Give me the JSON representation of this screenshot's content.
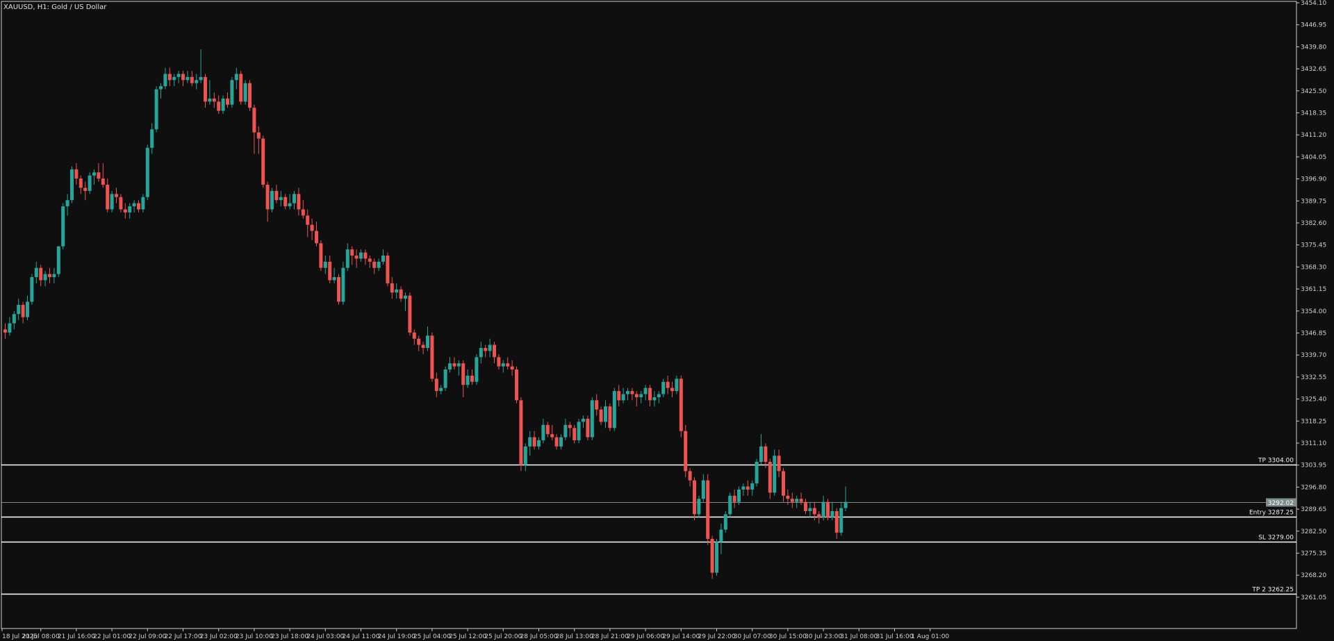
{
  "window": {
    "symbol_title": "XAUUSD, H1:  Gold / US Dollar"
  },
  "colors": {
    "background": "#0f0f0f",
    "bull": "#26a69a",
    "bear": "#ef5350",
    "axis_text": "#d0d0d0",
    "level_line": "#ffffff",
    "bid_line": "#7f8c8d",
    "price_tag_bg": "#7f8c8d"
  },
  "chart_data": {
    "type": "candlestick",
    "title": "XAUUSD, H1:  Gold / US Dollar",
    "ylim": [
      3257.0,
      3454.1
    ],
    "y_ticks": [
      "3454.10",
      "3446.95",
      "3439.80",
      "3432.65",
      "3425.50",
      "3418.35",
      "3411.20",
      "3404.05",
      "3396.90",
      "3389.75",
      "3382.60",
      "3375.45",
      "3368.30",
      "3361.15",
      "3354.00",
      "3346.85",
      "3339.70",
      "3332.55",
      "3325.40",
      "3318.25",
      "3311.10",
      "3303.95",
      "3296.80",
      "3289.65",
      "3282.50",
      "3275.35",
      "3268.20",
      "3261.05"
    ],
    "x_ticks": [
      {
        "label": "18 Jul 2025",
        "index": 0
      },
      {
        "label": "21 Jul 08:00",
        "index": 8
      },
      {
        "label": "21 Jul 16:00",
        "index": 16
      },
      {
        "label": "22 Jul 01:00",
        "index": 24
      },
      {
        "label": "22 Jul 09:00",
        "index": 32
      },
      {
        "label": "22 Jul 17:00",
        "index": 40
      },
      {
        "label": "23 Jul 02:00",
        "index": 48
      },
      {
        "label": "23 Jul 10:00",
        "index": 56
      },
      {
        "label": "23 Jul 18:00",
        "index": 64
      },
      {
        "label": "24 Jul 03:00",
        "index": 72
      },
      {
        "label": "24 Jul 11:00",
        "index": 80
      },
      {
        "label": "24 Jul 19:00",
        "index": 88
      },
      {
        "label": "25 Jul 04:00",
        "index": 96
      },
      {
        "label": "25 Jul 12:00",
        "index": 104
      },
      {
        "label": "25 Jul 20:00",
        "index": 112
      },
      {
        "label": "28 Jul 05:00",
        "index": 120
      },
      {
        "label": "28 Jul 13:00",
        "index": 128
      },
      {
        "label": "28 Jul 21:00",
        "index": 136
      },
      {
        "label": "29 Jul 06:00",
        "index": 144
      },
      {
        "label": "29 Jul 14:00",
        "index": 152
      },
      {
        "label": "29 Jul 22:00",
        "index": 160
      },
      {
        "label": "30 Jul 07:00",
        "index": 168
      },
      {
        "label": "30 Jul 15:00",
        "index": 176
      },
      {
        "label": "30 Jul 23:00",
        "index": 184
      },
      {
        "label": "31 Jul 08:00",
        "index": 192
      },
      {
        "label": "31 Jul 16:00",
        "index": 200
      },
      {
        "label": "1 Aug 01:00",
        "index": 208
      }
    ],
    "levels": [
      {
        "label": "TP 3304.00",
        "price": 3304.0
      },
      {
        "label": "Entry 3287.25",
        "price": 3287.25
      },
      {
        "label": "SL 3279.00",
        "price": 3279.0
      },
      {
        "label": "TP 2 3262.25",
        "price": 3262.25
      }
    ],
    "current_price": {
      "label": "3292.02",
      "price": 3292.02
    },
    "candles": [
      [
        3348.0,
        3350.0,
        3345.0,
        3347.0
      ],
      [
        3347.0,
        3352.0,
        3346.0,
        3350.0
      ],
      [
        3350.0,
        3354.0,
        3348.0,
        3353.0
      ],
      [
        3353.0,
        3358.0,
        3351.0,
        3356.0
      ],
      [
        3356.0,
        3357.0,
        3350.0,
        3352.0
      ],
      [
        3352.0,
        3359.0,
        3351.0,
        3357.0
      ],
      [
        3357.0,
        3366.0,
        3356.0,
        3365.0
      ],
      [
        3365.0,
        3370.0,
        3363.0,
        3368.0
      ],
      [
        3368.0,
        3369.0,
        3362.0,
        3364.0
      ],
      [
        3364.0,
        3367.0,
        3362.0,
        3366.0
      ],
      [
        3366.0,
        3368.0,
        3363.0,
        3365.0
      ],
      [
        3365.0,
        3368.0,
        3363.0,
        3366.0
      ],
      [
        3366.0,
        3375.0,
        3365.0,
        3375.0
      ],
      [
        3375.0,
        3389.0,
        3374.0,
        3388.0
      ],
      [
        3388.0,
        3392.0,
        3385.0,
        3390.0
      ],
      [
        3390.0,
        3401.0,
        3389.0,
        3400.0
      ],
      [
        3400.0,
        3402.0,
        3395.0,
        3397.0
      ],
      [
        3397.0,
        3398.0,
        3392.0,
        3394.0
      ],
      [
        3394.0,
        3396.0,
        3390.0,
        3393.0
      ],
      [
        3393.0,
        3399.0,
        3392.0,
        3398.0
      ],
      [
        3398.0,
        3400.0,
        3395.0,
        3399.0
      ],
      [
        3399.0,
        3402.0,
        3396.0,
        3397.0
      ],
      [
        3397.0,
        3402.0,
        3394.0,
        3395.0
      ],
      [
        3395.0,
        3397.0,
        3386.0,
        3387.0
      ],
      [
        3387.0,
        3393.0,
        3386.0,
        3392.0
      ],
      [
        3392.0,
        3394.0,
        3389.0,
        3391.0
      ],
      [
        3391.0,
        3392.0,
        3386.0,
        3387.0
      ],
      [
        3387.0,
        3389.0,
        3384.0,
        3386.0
      ],
      [
        3386.0,
        3389.0,
        3384.0,
        3388.0
      ],
      [
        3388.0,
        3390.0,
        3386.0,
        3389.0
      ],
      [
        3389.0,
        3390.0,
        3386.0,
        3387.0
      ],
      [
        3387.0,
        3392.0,
        3386.0,
        3391.0
      ],
      [
        3391.0,
        3408.0,
        3390.0,
        3407.0
      ],
      [
        3407.0,
        3415.0,
        3405.0,
        3413.0
      ],
      [
        3413.0,
        3427.0,
        3412.0,
        3426.0
      ],
      [
        3426.0,
        3428.0,
        3423.0,
        3427.0
      ],
      [
        3427.0,
        3433.0,
        3426.0,
        3431.0
      ],
      [
        3431.0,
        3433.0,
        3427.0,
        3429.0
      ],
      [
        3429.0,
        3431.0,
        3427.0,
        3430.0
      ],
      [
        3430.0,
        3432.0,
        3428.0,
        3431.0
      ],
      [
        3431.0,
        3432.0,
        3427.0,
        3429.0
      ],
      [
        3429.0,
        3432.0,
        3428.0,
        3430.0
      ],
      [
        3430.0,
        3432.0,
        3427.0,
        3428.0
      ],
      [
        3428.0,
        3431.0,
        3426.0,
        3429.0
      ],
      [
        3429.0,
        3439.0,
        3428.0,
        3430.0
      ],
      [
        3430.0,
        3431.0,
        3420.0,
        3422.0
      ],
      [
        3422.0,
        3429.0,
        3421.0,
        3423.0
      ],
      [
        3423.0,
        3425.0,
        3420.0,
        3422.0
      ],
      [
        3422.0,
        3424.0,
        3418.0,
        3419.0
      ],
      [
        3419.0,
        3424.0,
        3418.0,
        3423.0
      ],
      [
        3423.0,
        3425.0,
        3420.0,
        3421.0
      ],
      [
        3421.0,
        3430.0,
        3420.0,
        3429.0
      ],
      [
        3429.0,
        3433.0,
        3426.0,
        3431.0
      ],
      [
        3431.0,
        3432.0,
        3421.0,
        3422.0
      ],
      [
        3422.0,
        3429.0,
        3421.0,
        3428.0
      ],
      [
        3428.0,
        3429.0,
        3419.0,
        3420.0
      ],
      [
        3420.0,
        3421.0,
        3405.0,
        3412.0
      ],
      [
        3412.0,
        3414.0,
        3405.0,
        3410.0
      ],
      [
        3410.0,
        3411.0,
        3394.0,
        3395.0
      ],
      [
        3395.0,
        3396.0,
        3383.0,
        3387.0
      ],
      [
        3387.0,
        3394.0,
        3386.0,
        3393.0
      ],
      [
        3393.0,
        3395.0,
        3389.0,
        3390.0
      ],
      [
        3390.0,
        3393.0,
        3388.0,
        3391.0
      ],
      [
        3391.0,
        3392.0,
        3387.0,
        3388.0
      ],
      [
        3388.0,
        3392.0,
        3387.0,
        3389.0
      ],
      [
        3389.0,
        3393.0,
        3387.0,
        3392.0
      ],
      [
        3392.0,
        3394.0,
        3385.0,
        3387.0
      ],
      [
        3387.0,
        3390.0,
        3384.0,
        3385.0
      ],
      [
        3385.0,
        3387.0,
        3378.0,
        3382.0
      ],
      [
        3382.0,
        3384.0,
        3377.0,
        3380.0
      ],
      [
        3380.0,
        3383.0,
        3375.0,
        3376.0
      ],
      [
        3376.0,
        3377.0,
        3367.0,
        3368.0
      ],
      [
        3368.0,
        3372.0,
        3366.0,
        3370.0
      ],
      [
        3370.0,
        3372.0,
        3363.0,
        3364.0
      ],
      [
        3364.0,
        3368.0,
        3363.0,
        3365.0
      ],
      [
        3365.0,
        3366.0,
        3356.0,
        3357.0
      ],
      [
        3357.0,
        3370.0,
        3356.0,
        3368.0
      ],
      [
        3368.0,
        3376.0,
        3367.0,
        3374.0
      ],
      [
        3374.0,
        3375.0,
        3369.0,
        3372.0
      ],
      [
        3372.0,
        3374.0,
        3368.0,
        3371.0
      ],
      [
        3371.0,
        3374.0,
        3370.0,
        3373.0
      ],
      [
        3373.0,
        3374.0,
        3369.0,
        3371.0
      ],
      [
        3371.0,
        3372.0,
        3368.0,
        3370.0
      ],
      [
        3370.0,
        3371.0,
        3366.0,
        3368.0
      ],
      [
        3368.0,
        3371.0,
        3367.0,
        3370.0
      ],
      [
        3370.0,
        3374.0,
        3369.0,
        3372.0
      ],
      [
        3372.0,
        3373.0,
        3362.0,
        3363.0
      ],
      [
        3363.0,
        3365.0,
        3358.0,
        3360.0
      ],
      [
        3360.0,
        3363.0,
        3358.0,
        3361.0
      ],
      [
        3361.0,
        3362.0,
        3357.0,
        3358.0
      ],
      [
        3358.0,
        3360.0,
        3354.0,
        3359.0
      ],
      [
        3359.0,
        3360.0,
        3346.0,
        3347.0
      ],
      [
        3347.0,
        3348.0,
        3343.0,
        3345.0
      ],
      [
        3345.0,
        3346.0,
        3341.0,
        3343.0
      ],
      [
        3343.0,
        3344.0,
        3340.0,
        3342.0
      ],
      [
        3342.0,
        3349.0,
        3341.0,
        3346.0
      ],
      [
        3346.0,
        3347.0,
        3331.0,
        3332.0
      ],
      [
        3332.0,
        3334.0,
        3326.0,
        3328.0
      ],
      [
        3328.0,
        3330.0,
        3327.0,
        3329.0
      ],
      [
        3329.0,
        3336.0,
        3328.0,
        3335.0
      ],
      [
        3335.0,
        3339.0,
        3334.0,
        3337.0
      ],
      [
        3337.0,
        3339.0,
        3335.0,
        3336.0
      ],
      [
        3336.0,
        3338.0,
        3333.0,
        3337.0
      ],
      [
        3337.0,
        3338.0,
        3326.0,
        3330.0
      ],
      [
        3330.0,
        3335.0,
        3329.0,
        3333.0
      ],
      [
        3333.0,
        3335.0,
        3330.0,
        3331.0
      ],
      [
        3331.0,
        3340.0,
        3330.0,
        3339.0
      ],
      [
        3339.0,
        3344.0,
        3337.0,
        3342.0
      ],
      [
        3342.0,
        3343.0,
        3339.0,
        3341.0
      ],
      [
        3341.0,
        3345.0,
        3339.0,
        3343.0
      ],
      [
        3343.0,
        3344.0,
        3337.0,
        3339.0
      ],
      [
        3339.0,
        3340.0,
        3335.0,
        3336.0
      ],
      [
        3336.0,
        3338.0,
        3334.0,
        3337.0
      ],
      [
        3337.0,
        3339.0,
        3335.0,
        3336.0
      ],
      [
        3336.0,
        3338.0,
        3333.0,
        3335.0
      ],
      [
        3335.0,
        3336.0,
        3324.0,
        3325.0
      ],
      [
        3325.0,
        3326.0,
        3302.0,
        3304.0
      ],
      [
        3304.0,
        3311.0,
        3302.0,
        3310.0
      ],
      [
        3310.0,
        3315.0,
        3307.0,
        3313.0
      ],
      [
        3313.0,
        3315.0,
        3309.0,
        3310.0
      ],
      [
        3310.0,
        3313.0,
        3309.0,
        3312.0
      ],
      [
        3312.0,
        3319.0,
        3311.0,
        3317.0
      ],
      [
        3317.0,
        3318.0,
        3313.0,
        3314.0
      ],
      [
        3314.0,
        3317.0,
        3312.0,
        3313.0
      ],
      [
        3313.0,
        3314.0,
        3309.0,
        3310.0
      ],
      [
        3310.0,
        3314.0,
        3309.0,
        3313.0
      ],
      [
        3313.0,
        3319.0,
        3312.0,
        3317.0
      ],
      [
        3317.0,
        3318.0,
        3313.0,
        3316.0
      ],
      [
        3316.0,
        3317.0,
        3311.0,
        3312.0
      ],
      [
        3312.0,
        3319.0,
        3311.0,
        3318.0
      ],
      [
        3318.0,
        3320.0,
        3316.0,
        3319.0
      ],
      [
        3319.0,
        3320.0,
        3312.0,
        3313.0
      ],
      [
        3313.0,
        3326.0,
        3312.0,
        3325.0
      ],
      [
        3325.0,
        3327.0,
        3320.0,
        3322.0
      ],
      [
        3322.0,
        3323.0,
        3317.0,
        3318.0
      ],
      [
        3318.0,
        3325.0,
        3316.0,
        3323.0
      ],
      [
        3323.0,
        3324.0,
        3315.0,
        3316.0
      ],
      [
        3316.0,
        3329.0,
        3315.0,
        3328.0
      ],
      [
        3328.0,
        3330.0,
        3323.0,
        3325.0
      ],
      [
        3325.0,
        3329.0,
        3324.0,
        3327.0
      ],
      [
        3327.0,
        3329.0,
        3325.0,
        3328.0
      ],
      [
        3328.0,
        3329.0,
        3325.0,
        3327.0
      ],
      [
        3327.0,
        3328.0,
        3323.0,
        3326.0
      ],
      [
        3326.0,
        3328.0,
        3324.0,
        3327.0
      ],
      [
        3327.0,
        3330.0,
        3325.0,
        3329.0
      ],
      [
        3329.0,
        3330.0,
        3323.0,
        3325.0
      ],
      [
        3325.0,
        3328.0,
        3323.0,
        3326.0
      ],
      [
        3326.0,
        3328.0,
        3324.0,
        3327.0
      ],
      [
        3327.0,
        3332.0,
        3326.0,
        3331.0
      ],
      [
        3331.0,
        3333.0,
        3327.0,
        3329.0
      ],
      [
        3329.0,
        3331.0,
        3326.0,
        3328.0
      ],
      [
        3328.0,
        3333.0,
        3327.0,
        3332.0
      ],
      [
        3332.0,
        3333.0,
        3313.0,
        3315.0
      ],
      [
        3315.0,
        3317.0,
        3300.0,
        3302.0
      ],
      [
        3302.0,
        3303.0,
        3297.0,
        3299.0
      ],
      [
        3299.0,
        3300.0,
        3286.0,
        3288.0
      ],
      [
        3288.0,
        3294.0,
        3287.0,
        3293.0
      ],
      [
        3293.0,
        3301.0,
        3292.0,
        3299.0
      ],
      [
        3299.0,
        3301.0,
        3278.0,
        3280.0
      ],
      [
        3280.0,
        3281.0,
        3267.0,
        3269.0
      ],
      [
        3269.0,
        3280.0,
        3268.0,
        3279.0
      ],
      [
        3279.0,
        3285.0,
        3275.0,
        3283.0
      ],
      [
        3283.0,
        3289.0,
        3282.0,
        3288.0
      ],
      [
        3288.0,
        3295.0,
        3287.0,
        3294.0
      ],
      [
        3294.0,
        3296.0,
        3290.0,
        3292.0
      ],
      [
        3292.0,
        3297.0,
        3291.0,
        3296.0
      ],
      [
        3296.0,
        3298.0,
        3294.0,
        3297.0
      ],
      [
        3297.0,
        3299.0,
        3294.0,
        3296.0
      ],
      [
        3296.0,
        3299.0,
        3294.0,
        3298.0
      ],
      [
        3298.0,
        3306.0,
        3297.0,
        3305.0
      ],
      [
        3305.0,
        3314.0,
        3304.0,
        3310.0
      ],
      [
        3310.0,
        3311.0,
        3303.0,
        3305.0
      ],
      [
        3305.0,
        3306.0,
        3293.0,
        3295.0
      ],
      [
        3295.0,
        3309.0,
        3294.0,
        3307.0
      ],
      [
        3307.0,
        3309.0,
        3300.0,
        3302.0
      ],
      [
        3302.0,
        3303.0,
        3292.0,
        3294.0
      ],
      [
        3294.0,
        3296.0,
        3291.0,
        3293.0
      ],
      [
        3293.0,
        3295.0,
        3290.0,
        3292.0
      ],
      [
        3292.0,
        3294.0,
        3290.0,
        3293.0
      ],
      [
        3293.0,
        3295.0,
        3291.0,
        3292.0
      ],
      [
        3292.0,
        3293.0,
        3288.0,
        3289.0
      ],
      [
        3289.0,
        3292.0,
        3287.0,
        3290.0
      ],
      [
        3290.0,
        3292.0,
        3286.0,
        3288.0
      ],
      [
        3288.0,
        3289.0,
        3285.0,
        3287.0
      ],
      [
        3287.0,
        3294.0,
        3286.0,
        3292.0
      ],
      [
        3292.0,
        3293.0,
        3286.0,
        3287.0
      ],
      [
        3287.0,
        3292.0,
        3286.0,
        3289.0
      ],
      [
        3289.0,
        3290.0,
        3280.0,
        3282.0
      ],
      [
        3282.0,
        3292.0,
        3281.0,
        3290.0
      ],
      [
        3290.0,
        3297.0,
        3289.0,
        3292.0
      ]
    ]
  }
}
